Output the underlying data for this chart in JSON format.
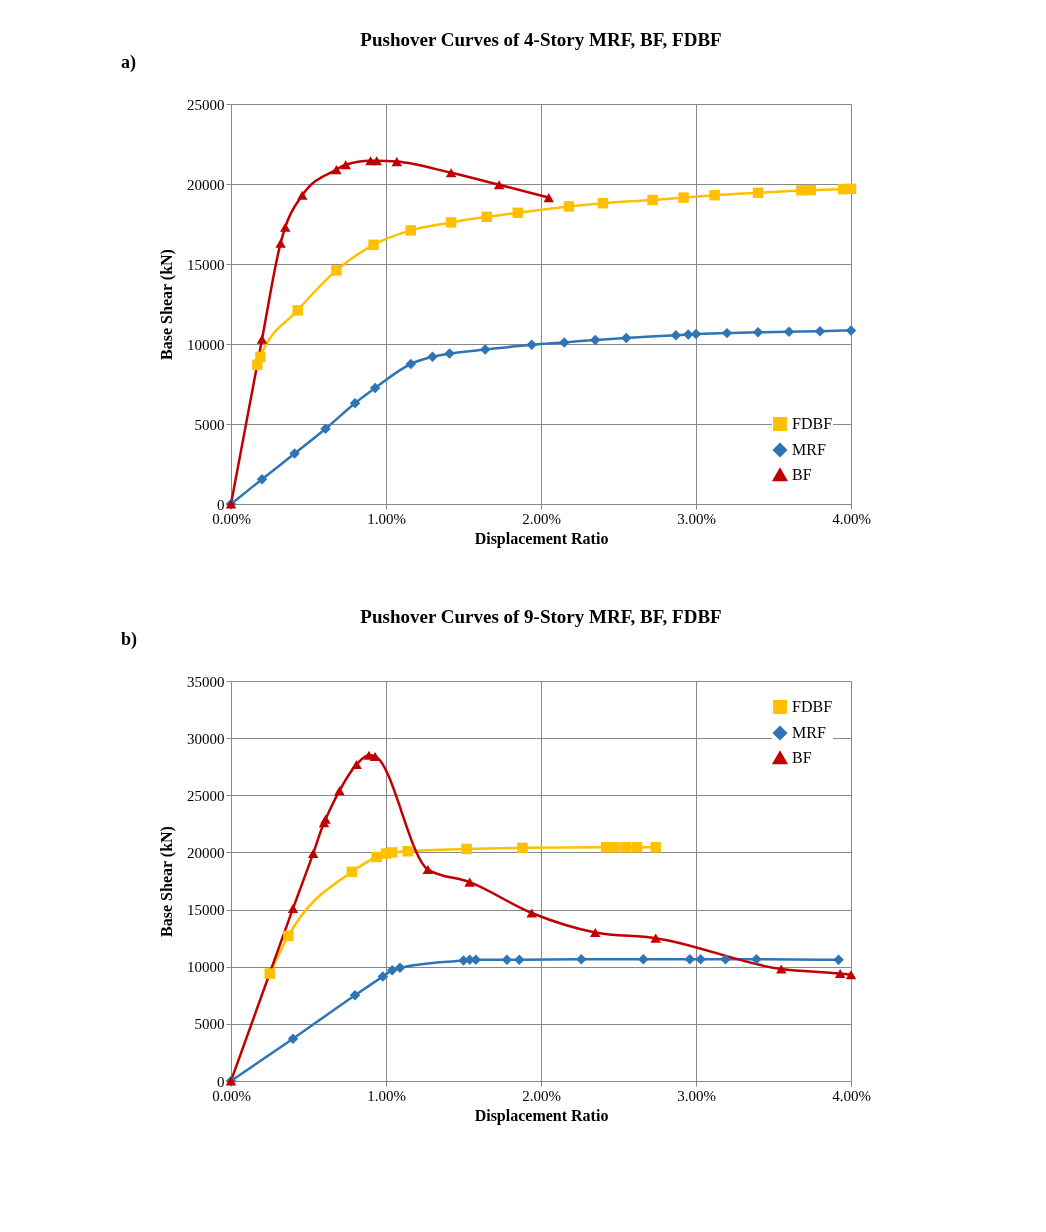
{
  "chart_data": [
    {
      "type": "line",
      "title": "Pushover Curves of 4-Story MRF, BF, FDBF",
      "xlabel": "Displacement Ratio",
      "ylabel": "Base Shear (kN)",
      "annotations": [
        "a)"
      ],
      "xlim": [
        0,
        4
      ],
      "xticks": [
        {
          "value": 0,
          "label": "0.00%"
        },
        {
          "value": 1,
          "label": "1.00%"
        },
        {
          "value": 2,
          "label": "2.00%"
        },
        {
          "value": 3,
          "label": "3.00%"
        },
        {
          "value": 4,
          "label": "4.00%"
        }
      ],
      "ylim": [
        0,
        25000
      ],
      "yticks": [
        0,
        5000,
        10000,
        15000,
        20000,
        25000
      ],
      "grid": true,
      "legend": "bottom right",
      "series": [
        {
          "name": "FDBF",
          "color": "#ffc000",
          "marker": "square",
          "x": [
            0.17,
            0.19,
            0.43,
            0.68,
            0.92,
            1.16,
            1.42,
            1.65,
            1.85,
            2.18,
            2.4,
            2.72,
            2.92,
            3.12,
            3.4,
            3.68,
            3.74,
            3.95,
            4.0
          ],
          "values": [
            8700,
            9200,
            12100,
            14600,
            16200,
            17100,
            17600,
            17950,
            18200,
            18600,
            18800,
            19000,
            19150,
            19300,
            19450,
            19600,
            19620,
            19680,
            19700
          ]
        },
        {
          "name": "MRF",
          "color": "#2e75b6",
          "marker": "diamond",
          "x": [
            0,
            0.2,
            0.41,
            0.61,
            0.8,
            0.93,
            1.16,
            1.3,
            1.41,
            1.64,
            1.94,
            2.15,
            2.35,
            2.55,
            2.87,
            2.95,
            3.0,
            3.2,
            3.4,
            3.6,
            3.8,
            4.0
          ],
          "values": [
            0,
            1550,
            3150,
            4700,
            6300,
            7250,
            8750,
            9200,
            9400,
            9650,
            9950,
            10100,
            10250,
            10380,
            10550,
            10600,
            10620,
            10680,
            10730,
            10770,
            10800,
            10850
          ]
        },
        {
          "name": "BF",
          "color": "#c00000",
          "marker": "triangle",
          "x": [
            0,
            0.2,
            0.32,
            0.35,
            0.46,
            0.68,
            0.74,
            0.9,
            0.94,
            1.07,
            1.42,
            1.73,
            2.05
          ],
          "values": [
            0,
            10300,
            16300,
            17300,
            19300,
            20900,
            21200,
            21450,
            21450,
            21400,
            20700,
            19950,
            19150
          ]
        }
      ]
    },
    {
      "type": "line",
      "title": "Pushover Curves of 9-Story MRF, BF, FDBF",
      "xlabel": "Displacement Ratio",
      "ylabel": "Base Shear (kN)",
      "annotations": [
        "b)"
      ],
      "xlim": [
        0,
        4
      ],
      "xticks": [
        {
          "value": 0,
          "label": "0.00%"
        },
        {
          "value": 1,
          "label": "1.00%"
        },
        {
          "value": 2,
          "label": "2.00%"
        },
        {
          "value": 3,
          "label": "3.00%"
        },
        {
          "value": 4,
          "label": "4.00%"
        }
      ],
      "ylim": [
        0,
        35000
      ],
      "yticks": [
        0,
        5000,
        10000,
        15000,
        20000,
        25000,
        30000,
        35000
      ],
      "grid": true,
      "legend": "top right",
      "series": [
        {
          "name": "FDBF",
          "color": "#ffc000",
          "marker": "square",
          "x": [
            0.25,
            0.37,
            0.78,
            0.94,
            1.0,
            1.04,
            1.14,
            1.52,
            1.88,
            2.42,
            2.48,
            2.55,
            2.62,
            2.74
          ],
          "values": [
            9400,
            12700,
            18300,
            19600,
            19900,
            20000,
            20100,
            20300,
            20400,
            20450,
            20450,
            20450,
            20450,
            20450
          ]
        },
        {
          "name": "MRF",
          "color": "#2e75b6",
          "marker": "diamond",
          "x": [
            0,
            0.4,
            0.8,
            0.98,
            1.04,
            1.09,
            1.5,
            1.54,
            1.58,
            1.78,
            1.86,
            2.26,
            2.66,
            2.96,
            3.03,
            3.19,
            3.39,
            3.92
          ],
          "values": [
            0,
            3700,
            7500,
            9150,
            9700,
            9900,
            10550,
            10600,
            10600,
            10600,
            10600,
            10650,
            10650,
            10650,
            10650,
            10650,
            10650,
            10600
          ]
        },
        {
          "name": "BF",
          "color": "#c00000",
          "marker": "triangle",
          "x": [
            0,
            0.4,
            0.53,
            0.6,
            0.61,
            0.7,
            0.81,
            0.89,
            0.93,
            1.27,
            1.54,
            1.94,
            2.35,
            2.74,
            3.55,
            3.93,
            4.0
          ],
          "values": [
            0,
            15100,
            19900,
            22600,
            22900,
            25400,
            27700,
            28500,
            28400,
            18500,
            17400,
            14700,
            13000,
            12500,
            9800,
            9400,
            9300
          ]
        }
      ]
    }
  ]
}
